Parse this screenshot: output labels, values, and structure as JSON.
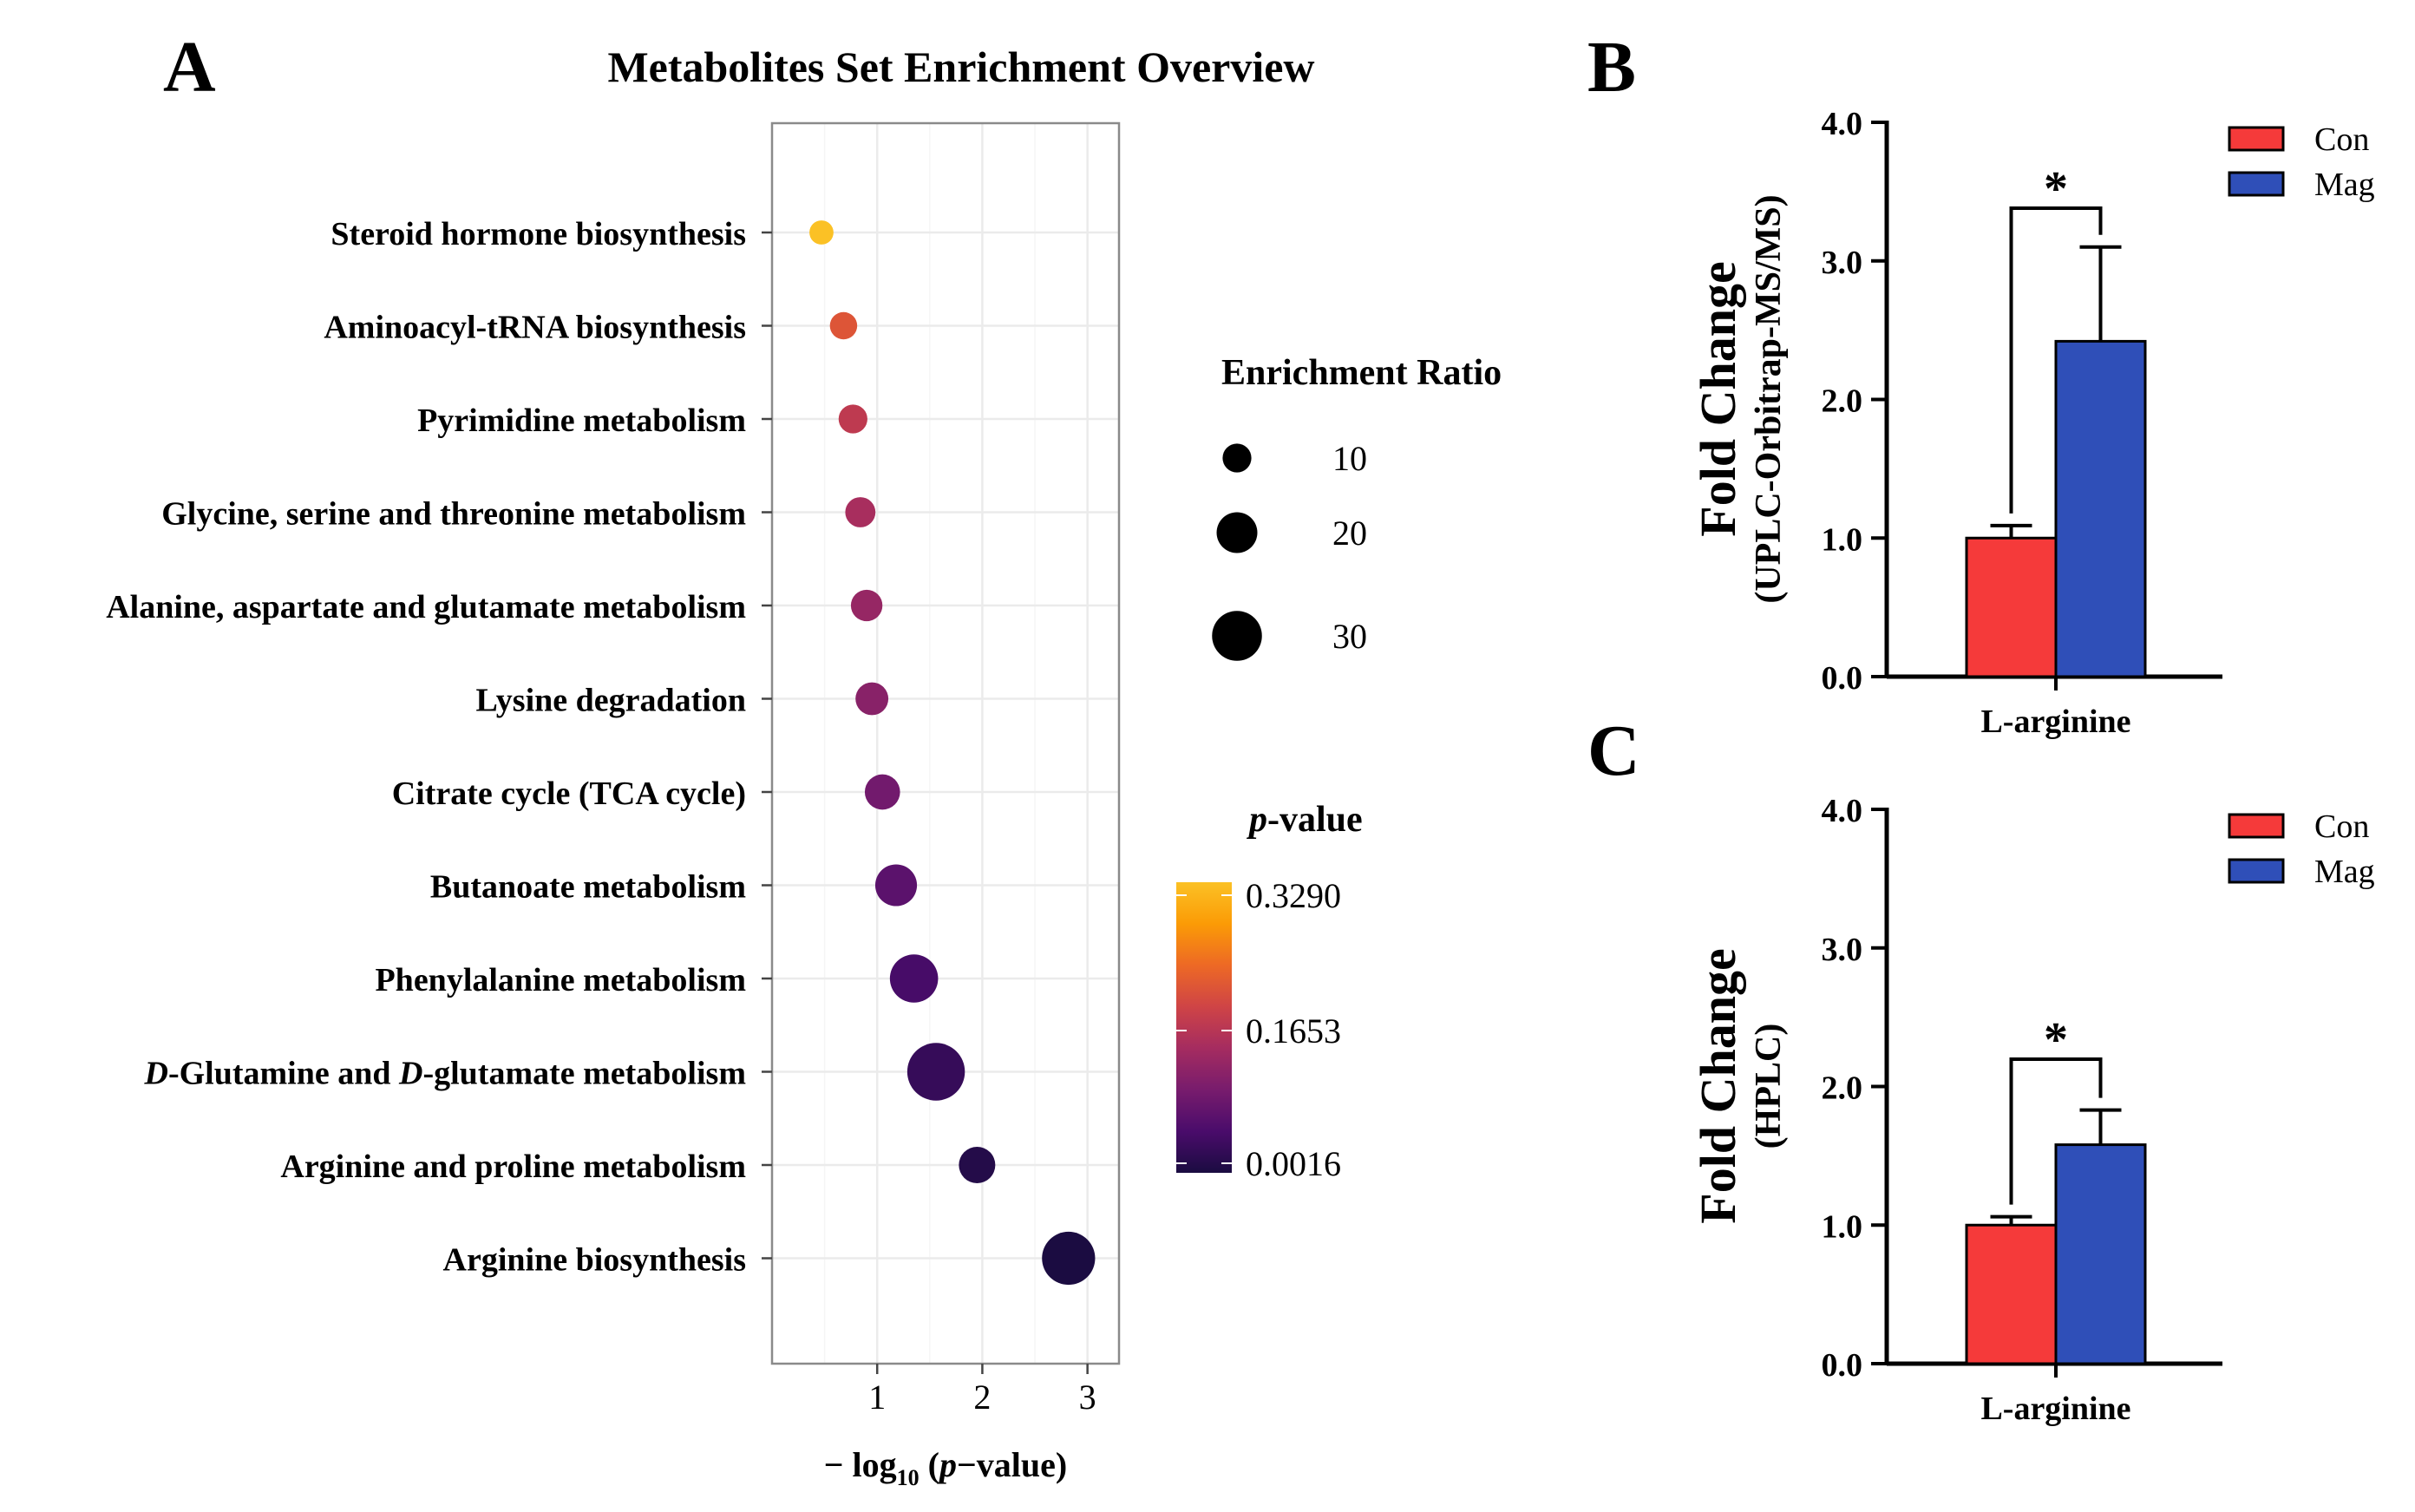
{
  "panel_labels": {
    "a": "A",
    "b": "B",
    "c": "C"
  },
  "chart_data": [
    {
      "type": "scatter",
      "panel": "A",
      "title": "Metabolites Set Enrichment Overview",
      "xlabel_prefix": "− log",
      "xlabel_sub": "10",
      "xlabel_paren_open": " (",
      "xlabel_p": "p",
      "xlabel_suffix": "−value)",
      "ylabel": "",
      "xlim": [
        0.0,
        3.3
      ],
      "xticks": [
        1,
        2,
        3
      ],
      "grid": true,
      "categories": [
        {
          "parts": [
            {
              "t": "Steroid hormone biosynthesis"
            }
          ]
        },
        {
          "parts": [
            {
              "t": "Aminoacyl-tRNA biosynthesis"
            }
          ]
        },
        {
          "parts": [
            {
              "t": "Pyrimidine metabolism"
            }
          ]
        },
        {
          "parts": [
            {
              "t": "Glycine, serine and threonine metabolism"
            }
          ]
        },
        {
          "parts": [
            {
              "t": "Alanine, aspartate and glutamate metabolism"
            }
          ]
        },
        {
          "parts": [
            {
              "t": "Lysine degradation"
            }
          ]
        },
        {
          "parts": [
            {
              "t": "Citrate cycle (TCA cycle)"
            }
          ]
        },
        {
          "parts": [
            {
              "t": "Butanoate metabolism"
            }
          ]
        },
        {
          "parts": [
            {
              "t": "Phenylalanine metabolism"
            }
          ]
        },
        {
          "parts": [
            {
              "t": "D",
              "i": true
            },
            {
              "t": "-Glutamine and "
            },
            {
              "t": "D",
              "i": true
            },
            {
              "t": "-glutamate metabolism"
            }
          ]
        },
        {
          "parts": [
            {
              "t": "Arginine and proline metabolism"
            }
          ]
        },
        {
          "parts": [
            {
              "t": "Arginine biosynthesis"
            }
          ]
        }
      ],
      "points": [
        {
          "x": 0.47,
          "enrichment_ratio": 7,
          "p_value": 0.329
        },
        {
          "x": 0.68,
          "enrichment_ratio": 9,
          "p_value": 0.21
        },
        {
          "x": 0.77,
          "enrichment_ratio": 10,
          "p_value": 0.17
        },
        {
          "x": 0.84,
          "enrichment_ratio": 11,
          "p_value": 0.145
        },
        {
          "x": 0.9,
          "enrichment_ratio": 12,
          "p_value": 0.126
        },
        {
          "x": 0.95,
          "enrichment_ratio": 13,
          "p_value": 0.112
        },
        {
          "x": 1.05,
          "enrichment_ratio": 15,
          "p_value": 0.089
        },
        {
          "x": 1.18,
          "enrichment_ratio": 21,
          "p_value": 0.066
        },
        {
          "x": 1.35,
          "enrichment_ratio": 28,
          "p_value": 0.045
        },
        {
          "x": 1.56,
          "enrichment_ratio": 40,
          "p_value": 0.028
        },
        {
          "x": 1.95,
          "enrichment_ratio": 16,
          "p_value": 0.011
        },
        {
          "x": 2.82,
          "enrichment_ratio": 34,
          "p_value": 0.0016
        }
      ],
      "size_legend": {
        "title": "Enrichment Ratio",
        "entries": [
          10,
          20,
          30
        ],
        "labels": [
          "10",
          "20",
          "30"
        ]
      },
      "color_legend": {
        "title_p": "p",
        "title_rest": "-value",
        "ticks": [
          "0.3290",
          "0.1653",
          "0.0016"
        ],
        "range": [
          0.0016,
          0.329
        ]
      },
      "colormap": [
        "#1b0c41",
        "#4a0c6b",
        "#781c6d",
        "#a52c60",
        "#cf4446",
        "#ed6925",
        "#fb9b06",
        "#fbc125"
      ]
    },
    {
      "type": "bar",
      "panel": "B",
      "categories": [
        "L-arginine"
      ],
      "ylabel": "Fold Change",
      "ylabel_sub": "(UPLC-Orbitrap-MS/MS)",
      "ylim": [
        0.0,
        4.0
      ],
      "yticks": [
        "0.0",
        "1.0",
        "2.0",
        "3.0",
        "4.0"
      ],
      "series": [
        {
          "name": "Con",
          "values": [
            1.0
          ],
          "error": [
            0.09
          ],
          "color": "#f53a3a"
        },
        {
          "name": "Mag",
          "values": [
            2.42
          ],
          "error": [
            0.68
          ],
          "color": "#2f4fb8"
        }
      ],
      "significance": "*",
      "legend": "top-right"
    },
    {
      "type": "bar",
      "panel": "C",
      "categories": [
        "L-arginine"
      ],
      "ylabel": "Fold Change",
      "ylabel_sub": "(HPLC)",
      "ylim": [
        0.0,
        4.0
      ],
      "yticks": [
        "0.0",
        "1.0",
        "2.0",
        "3.0",
        "4.0"
      ],
      "series": [
        {
          "name": "Con",
          "values": [
            1.0
          ],
          "error": [
            0.06
          ],
          "color": "#f53a3a"
        },
        {
          "name": "Mag",
          "values": [
            1.58
          ],
          "error": [
            0.25
          ],
          "color": "#2f4fb8"
        }
      ],
      "significance": "*",
      "legend": "top-right"
    }
  ]
}
